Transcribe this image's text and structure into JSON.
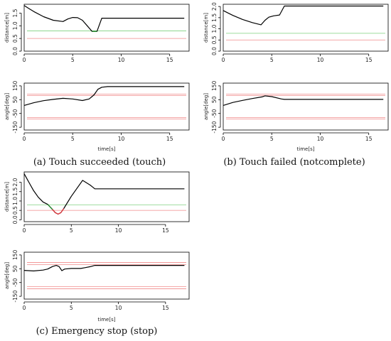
{
  "figure": {
    "panels": [
      {
        "caption": "(a) Touch succeeded (touch)",
        "xlabel": "time[s]"
      },
      {
        "caption": "(b) Touch failed (notcomplete)",
        "xlabel": "time[s]"
      },
      {
        "caption": "(c) Emergency stop (stop)",
        "xlabel": "time[s]"
      }
    ]
  },
  "colors": {
    "data_line": "#000000",
    "threshold_green": "#7ed07e",
    "threshold_red": "#f08a8a",
    "highlight_red": "#e8333a",
    "highlight_green": "#1e8a2a"
  },
  "chart_data": [
    {
      "type": "line",
      "panel": "a",
      "ylabel": "distance[m]",
      "xlim": [
        0,
        17
      ],
      "ylim": [
        0,
        1.85
      ],
      "xticks": [
        0,
        5,
        10,
        15
      ],
      "yticks": [
        0.0,
        0.5,
        1.0,
        1.5
      ],
      "ytick_labels": [
        "0.0",
        "0.5",
        "1.0",
        "1.5"
      ],
      "hlines": [
        {
          "y": 0.8,
          "color": "green"
        },
        {
          "y": 0.5,
          "color": "red"
        }
      ],
      "series": [
        {
          "x": [
            0,
            0.5,
            1,
            2,
            3,
            4,
            4.5,
            5,
            5.5,
            6,
            6.5,
            7,
            7.5,
            8,
            16.5
          ],
          "y": [
            1.8,
            1.68,
            1.56,
            1.36,
            1.22,
            1.17,
            1.27,
            1.33,
            1.32,
            1.22,
            1.0,
            0.78,
            0.78,
            1.3,
            1.3
          ]
        }
      ]
    },
    {
      "type": "line",
      "panel": "a",
      "ylabel": "angle[deg]",
      "xlim": [
        0,
        17
      ],
      "ylim": [
        -170,
        170
      ],
      "xticks": [
        0,
        5,
        10,
        15
      ],
      "yticks": [
        -150,
        -50,
        50,
        150
      ],
      "ytick_labels": [
        "-150",
        "-50",
        "50",
        "150"
      ],
      "hlines": [
        {
          "y": 90,
          "color": "red"
        },
        {
          "y": 80,
          "color": "red"
        },
        {
          "y": -80,
          "color": "red"
        },
        {
          "y": -90,
          "color": "red"
        }
      ],
      "series": [
        {
          "x": [
            0,
            1,
            2,
            3,
            4,
            5,
            6,
            6.7,
            7.2,
            7.6,
            8,
            8.6,
            16.5
          ],
          "y": [
            8,
            28,
            43,
            52,
            60,
            55,
            44,
            55,
            85,
            125,
            140,
            145,
            145
          ]
        }
      ]
    },
    {
      "type": "line",
      "panel": "b",
      "ylabel": "distance[m]",
      "xlim": [
        0,
        17
      ],
      "ylim": [
        0,
        2.1
      ],
      "xticks": [
        0,
        5,
        10,
        15
      ],
      "yticks": [
        0.0,
        0.5,
        1.0,
        1.5,
        2.0
      ],
      "ytick_labels": [
        "0.0",
        "0.5",
        "1.0",
        "1.5",
        "2.0"
      ],
      "hlines": [
        {
          "y": 0.8,
          "color": "green"
        },
        {
          "y": 0.5,
          "color": "red"
        }
      ],
      "series": [
        {
          "x": [
            0,
            0.5,
            1,
            2,
            3,
            3.9,
            4.3,
            4.7,
            5.2,
            5.8,
            6.3,
            16.5
          ],
          "y": [
            1.82,
            1.71,
            1.6,
            1.42,
            1.28,
            1.18,
            1.38,
            1.52,
            1.58,
            1.62,
            2.02,
            2.02
          ]
        }
      ]
    },
    {
      "type": "line",
      "panel": "b",
      "ylabel": "angle[deg]",
      "xlim": [
        0,
        17
      ],
      "ylim": [
        -170,
        170
      ],
      "xticks": [
        0,
        5,
        10,
        15
      ],
      "yticks": [
        -150,
        -50,
        50,
        150
      ],
      "ytick_labels": [
        "-150",
        "-50",
        "50",
        "150"
      ],
      "hlines": [
        {
          "y": 90,
          "color": "red"
        },
        {
          "y": 80,
          "color": "red"
        },
        {
          "y": -80,
          "color": "red"
        },
        {
          "y": -90,
          "color": "red"
        }
      ],
      "series": [
        {
          "x": [
            0,
            1,
            2,
            3,
            4,
            4.3,
            5,
            6,
            6.3,
            16.5
          ],
          "y": [
            8,
            30,
            45,
            58,
            70,
            78,
            72,
            55,
            52,
            52
          ]
        }
      ]
    },
    {
      "type": "line",
      "panel": "c",
      "ylabel": "distance[m]",
      "xlim": [
        0,
        17.5
      ],
      "ylim": [
        -0.1,
        2.55
      ],
      "xticks": [
        0,
        5,
        10,
        15
      ],
      "yticks": [
        0.0,
        0.5,
        1.0,
        1.5,
        2.0
      ],
      "ytick_labels": [
        "0.0",
        "0.5",
        "1.0",
        "1.5",
        "2.0"
      ],
      "hlines": [
        {
          "y": 0.8,
          "color": "green"
        },
        {
          "y": 0.5,
          "color": "red"
        }
      ],
      "series": [
        {
          "x": [
            0,
            0.5,
            1,
            1.5,
            2,
            2.5,
            3,
            3.3,
            3.6,
            3.9,
            4.2,
            5,
            6.2,
            7,
            7.5,
            17
          ],
          "y": [
            2.45,
            2.0,
            1.55,
            1.2,
            0.95,
            0.82,
            0.55,
            0.38,
            0.3,
            0.38,
            0.6,
            1.25,
            2.1,
            1.85,
            1.65,
            1.65
          ]
        }
      ]
    },
    {
      "type": "line",
      "panel": "c",
      "ylabel": "angle[deg]",
      "xlim": [
        0,
        17.5
      ],
      "ylim": [
        -170,
        170
      ],
      "xticks": [
        0,
        5,
        10,
        15
      ],
      "yticks": [
        -150,
        -50,
        50,
        150
      ],
      "ytick_labels": [
        "-150",
        "-50",
        "50",
        "150"
      ],
      "hlines": [
        {
          "y": 95,
          "color": "red"
        },
        {
          "y": 80,
          "color": "red"
        },
        {
          "y": -80,
          "color": "red"
        },
        {
          "y": -95,
          "color": "red"
        }
      ],
      "series": [
        {
          "x": [
            0,
            1,
            2,
            2.5,
            3,
            3.4,
            3.7,
            4.0,
            4.3,
            5,
            6,
            6.5,
            7,
            7.5,
            17
          ],
          "y": [
            38,
            34,
            40,
            48,
            66,
            74,
            66,
            36,
            48,
            52,
            52,
            58,
            65,
            74,
            74
          ]
        }
      ]
    }
  ]
}
